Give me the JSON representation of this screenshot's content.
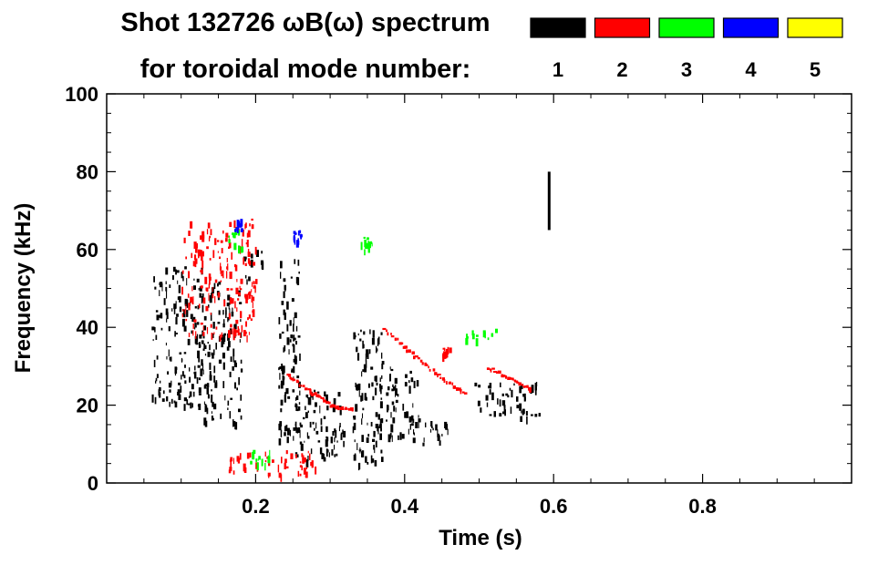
{
  "chart_data": {
    "type": "heatmap",
    "title_line1": "Shot 132726 ωB(ω) spectrum",
    "title_line2": "for toroidal mode number:",
    "xlabel": "Time (s)",
    "ylabel": "Frequency (kHz)",
    "xlim": [
      0.0,
      1.0
    ],
    "ylim": [
      0,
      100
    ],
    "x_ticks": [
      "0.2",
      "0.4",
      "0.6",
      "0.8"
    ],
    "x_tick_values": [
      0.2,
      0.4,
      0.6,
      0.8
    ],
    "y_ticks": [
      "0",
      "20",
      "40",
      "60",
      "80",
      "100"
    ],
    "y_tick_values": [
      0,
      20,
      40,
      60,
      80,
      100
    ],
    "legend": [
      {
        "label": "1",
        "color": "#000000"
      },
      {
        "label": "2",
        "color": "#ff0000"
      },
      {
        "label": "3",
        "color": "#00ff00"
      },
      {
        "label": "4",
        "color": "#0000ff"
      },
      {
        "label": "5",
        "color": "#ffff00"
      }
    ],
    "features": [
      {
        "mode": "1",
        "kind": "blob",
        "t": [
          0.06,
          0.13
        ],
        "f": [
          20,
          56
        ]
      },
      {
        "mode": "1",
        "kind": "blob",
        "t": [
          0.13,
          0.18
        ],
        "f": [
          15,
          52
        ]
      },
      {
        "mode": "1",
        "kind": "blob",
        "t": [
          0.18,
          0.21
        ],
        "f": [
          52,
          60
        ]
      },
      {
        "mode": "1",
        "kind": "blob",
        "t": [
          0.23,
          0.26
        ],
        "f": [
          10,
          58
        ]
      },
      {
        "mode": "1",
        "kind": "blob",
        "t": [
          0.25,
          0.32
        ],
        "f": [
          6,
          24
        ]
      },
      {
        "mode": "1",
        "kind": "blob",
        "t": [
          0.33,
          0.37
        ],
        "f": [
          5,
          40
        ]
      },
      {
        "mode": "1",
        "kind": "blob",
        "t": [
          0.36,
          0.42
        ],
        "f": [
          12,
          30
        ]
      },
      {
        "mode": "1",
        "kind": "blob",
        "t": [
          0.41,
          0.46
        ],
        "f": [
          10,
          16
        ]
      },
      {
        "mode": "1",
        "kind": "blob",
        "t": [
          0.49,
          0.58
        ],
        "f": [
          17,
          26
        ]
      },
      {
        "mode": "1",
        "kind": "line",
        "t": [
          0.594,
          0.594
        ],
        "f": [
          65,
          80
        ]
      },
      {
        "mode": "2",
        "kind": "chirp",
        "points": [
          [
            0.24,
            28
          ],
          [
            0.27,
            24
          ],
          [
            0.3,
            20
          ],
          [
            0.33,
            19
          ]
        ]
      },
      {
        "mode": "2",
        "kind": "chirp",
        "points": [
          [
            0.37,
            40
          ],
          [
            0.41,
            33
          ],
          [
            0.45,
            27
          ],
          [
            0.48,
            23
          ]
        ]
      },
      {
        "mode": "2",
        "kind": "chirp",
        "points": [
          [
            0.51,
            30
          ],
          [
            0.54,
            27
          ],
          [
            0.57,
            24
          ]
        ]
      },
      {
        "mode": "2",
        "kind": "blob",
        "t": [
          0.1,
          0.2
        ],
        "f": [
          38,
          68
        ]
      },
      {
        "mode": "2",
        "kind": "blob",
        "t": [
          0.16,
          0.28
        ],
        "f": [
          2,
          9
        ]
      },
      {
        "mode": "2",
        "kind": "blob",
        "t": [
          0.45,
          0.46
        ],
        "f": [
          33,
          35
        ]
      },
      {
        "mode": "3",
        "kind": "blob",
        "t": [
          0.16,
          0.18
        ],
        "f": [
          60,
          66
        ]
      },
      {
        "mode": "3",
        "kind": "blob",
        "t": [
          0.19,
          0.23
        ],
        "f": [
          5,
          9
        ]
      },
      {
        "mode": "3",
        "kind": "blob",
        "t": [
          0.48,
          0.53
        ],
        "f": [
          37,
          40
        ]
      },
      {
        "mode": "3",
        "kind": "blob",
        "t": [
          0.34,
          0.36
        ],
        "f": [
          60,
          64
        ]
      },
      {
        "mode": "4",
        "kind": "blob",
        "t": [
          0.17,
          0.18
        ],
        "f": [
          65,
          68
        ]
      },
      {
        "mode": "4",
        "kind": "blob",
        "t": [
          0.25,
          0.26
        ],
        "f": [
          62,
          65
        ]
      }
    ]
  }
}
